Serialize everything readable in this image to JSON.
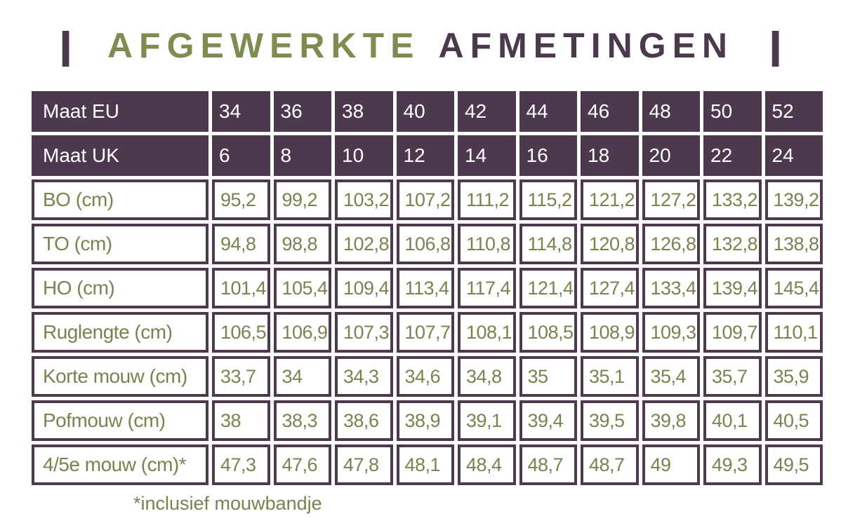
{
  "title": {
    "left_bar": "|",
    "part1": "AFGEWERKTE",
    "part2": "AFMETINGEN",
    "right_bar": "|"
  },
  "colors": {
    "purple": "#4d394d",
    "olive": "#7c8150",
    "title_olive": "#7e8c51",
    "header_text": "#ffffff",
    "background": "#ffffff"
  },
  "table": {
    "header_rows": [
      {
        "label": "Maat EU",
        "values": [
          "34",
          "36",
          "38",
          "40",
          "42",
          "44",
          "46",
          "48",
          "50",
          "52"
        ]
      },
      {
        "label": "Maat UK",
        "values": [
          "6",
          "8",
          "10",
          "12",
          "14",
          "16",
          "18",
          "20",
          "22",
          "24"
        ]
      }
    ],
    "rows": [
      {
        "label": "BO (cm)",
        "values": [
          "95,2",
          "99,2",
          "103,2",
          "107,2",
          "111,2",
          "115,2",
          "121,2",
          "127,2",
          "133,2",
          "139,2"
        ]
      },
      {
        "label": "TO (cm)",
        "values": [
          "94,8",
          "98,8",
          "102,8",
          "106,8",
          "110,8",
          "114,8",
          "120,8",
          "126,8",
          "132,8",
          "138,8"
        ]
      },
      {
        "label": "HO (cm)",
        "values": [
          "101,4",
          "105,4",
          "109,4",
          "113,4",
          "117,4",
          "121,4",
          "127,4",
          "133,4",
          "139,4",
          "145,4"
        ]
      },
      {
        "label": "Ruglengte (cm)",
        "values": [
          "106,5",
          "106,9",
          "107,3",
          "107,7",
          "108,1",
          "108,5",
          "108,9",
          "109,3",
          "109,7",
          "110,1"
        ]
      },
      {
        "label": "Korte mouw (cm)",
        "values": [
          "33,7",
          "34",
          "34,3",
          "34,6",
          "34,8",
          "35",
          "35,1",
          "35,4",
          "35,7",
          "35,9"
        ]
      },
      {
        "label": "Pofmouw (cm)",
        "values": [
          "38",
          "38,3",
          "38,6",
          "38,9",
          "39,1",
          "39,4",
          "39,5",
          "39,8",
          "40,1",
          "40,5"
        ]
      },
      {
        "label": "4/5e mouw (cm)*",
        "values": [
          "47,3",
          "47,6",
          "47,8",
          "48,1",
          "48,4",
          "48,7",
          "48,7",
          "49",
          "49,3",
          "49,5"
        ]
      }
    ]
  },
  "footnote": "*inclusief mouwbandje"
}
